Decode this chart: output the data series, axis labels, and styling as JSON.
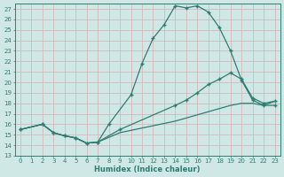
{
  "xlabel": "Humidex (Indice chaleur)",
  "xlim": [
    -0.5,
    23.5
  ],
  "ylim": [
    13,
    27.5
  ],
  "yticks": [
    13,
    14,
    15,
    16,
    17,
    18,
    19,
    20,
    21,
    22,
    23,
    24,
    25,
    26,
    27
  ],
  "xticks": [
    0,
    1,
    2,
    3,
    4,
    5,
    6,
    7,
    8,
    9,
    10,
    11,
    12,
    13,
    14,
    15,
    16,
    17,
    18,
    19,
    20,
    21,
    22,
    23
  ],
  "bg_color": "#cfe8e5",
  "grid_color": "#b8d8d4",
  "line_color": "#2e7d72",
  "line1_x": [
    0,
    2,
    3,
    4,
    5,
    6,
    7,
    8,
    10,
    11,
    12,
    13,
    14,
    15,
    16,
    17,
    18,
    19,
    20,
    21,
    22,
    23
  ],
  "line1_y": [
    15.5,
    16.0,
    15.2,
    14.9,
    14.7,
    14.2,
    14.3,
    16.0,
    18.8,
    21.8,
    24.2,
    25.5,
    27.3,
    27.1,
    27.3,
    26.7,
    25.2,
    23.0,
    20.2,
    18.3,
    17.8,
    17.8
  ],
  "line2_x": [
    0,
    2,
    3,
    4,
    5,
    6,
    7,
    9,
    14,
    15,
    16,
    17,
    18,
    19,
    20,
    21,
    22,
    23
  ],
  "line2_y": [
    15.5,
    16.0,
    15.2,
    14.9,
    14.7,
    14.2,
    14.3,
    15.5,
    17.8,
    18.3,
    19.0,
    19.8,
    20.3,
    20.9,
    20.3,
    18.5,
    18.0,
    18.2
  ],
  "line3_x": [
    0,
    2,
    3,
    4,
    5,
    6,
    7,
    9,
    14,
    15,
    16,
    17,
    18,
    19,
    20,
    21,
    22,
    23
  ],
  "line3_y": [
    15.5,
    16.0,
    15.2,
    14.9,
    14.7,
    14.2,
    14.3,
    15.2,
    16.3,
    16.6,
    16.9,
    17.2,
    17.5,
    17.8,
    18.0,
    18.0,
    17.8,
    18.2
  ]
}
